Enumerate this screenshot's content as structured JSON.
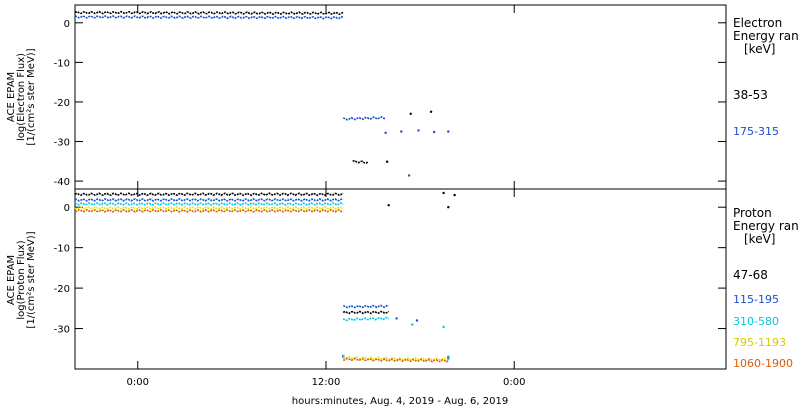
{
  "chart_data": [
    {
      "panel": "electron",
      "type": "scatter",
      "ylabel": [
        "ACE EPAM",
        "log(Electron Flux)",
        "[1/(cm²s ster MeV)]"
      ],
      "ylim": [
        -42,
        4.5
      ],
      "yticks": [
        0,
        -10,
        -20,
        -30,
        -40
      ],
      "legend_title": [
        "Electron",
        "Energy ran",
        "[keV]"
      ],
      "series": [
        {
          "name": "38-53",
          "color": "#000000",
          "x": [
            -4.0,
            13.1,
            13.7,
            14.7,
            15.9,
            17.4,
            18.7
          ],
          "y": [
            2.6,
            2.4,
            -35.0,
            -35.3,
            -35.1,
            -23.0,
            -22.5
          ]
        },
        {
          "name": "175-315",
          "color": "#1a4fc8",
          "x": [
            -4.0,
            13.1,
            13.1,
            15.8,
            15.8,
            16.8,
            17.3,
            17.9,
            18.9,
            19.8
          ],
          "y": [
            1.5,
            1.3,
            -24.3,
            -24.0,
            -27.8,
            -27.5,
            -38.6,
            -27.2,
            -27.6,
            -27.5
          ]
        }
      ]
    },
    {
      "panel": "proton",
      "type": "scatter",
      "ylabel": [
        "ACE EPAM",
        "log(Proton Flux)",
        "[1/(cm²s ster MeV)]"
      ],
      "ylim": [
        -40,
        4.5
      ],
      "yticks": [
        0,
        -10,
        -20,
        -30
      ],
      "legend_title": [
        "Proton",
        "Energy ran",
        "[keV]"
      ],
      "series": [
        {
          "name": "47-68",
          "color": "#000000",
          "x": [
            -4.0,
            13.1,
            13.1,
            16.0,
            16.0,
            19.5,
            19.8,
            20.2,
            13.1,
            19.8
          ],
          "y": [
            3.2,
            3.2,
            -26.0,
            -26.0,
            0.5,
            3.5,
            0.0,
            3.0,
            -36.8,
            -37.0
          ]
        },
        {
          "name": "115-195",
          "color": "#1a4fc8",
          "x": [
            -4.0,
            13.1,
            13.1,
            16.0,
            16.5,
            17.8,
            13.1,
            19.8
          ],
          "y": [
            1.8,
            1.8,
            -24.6,
            -24.5,
            -27.5,
            -28.0,
            -37.0,
            -37.4
          ]
        },
        {
          "name": "310-580",
          "color": "#00c8e0",
          "x": [
            -4.0,
            13.1,
            13.1,
            16.0,
            17.5,
            19.5,
            13.1,
            19.8
          ],
          "y": [
            0.8,
            0.8,
            -27.8,
            -27.5,
            -29.0,
            -29.6,
            -36.8,
            -37.1
          ]
        },
        {
          "name": "795-1193",
          "color": "#e6e600",
          "x": [
            -4.0,
            13.1,
            13.1,
            19.8
          ],
          "y": [
            -0.2,
            -0.2,
            -37.2,
            -37.6
          ]
        },
        {
          "name": "1060-1900",
          "color": "#e05a00",
          "x": [
            -4.0,
            13.1,
            13.1,
            19.8
          ],
          "y": [
            -0.9,
            -0.9,
            -37.6,
            -38.0
          ]
        }
      ]
    }
  ],
  "x_axis": {
    "range_hours": [
      -4.0,
      37.5
    ],
    "ticks": [
      0,
      12,
      24
    ],
    "tick_labels": [
      "0:00",
      "12:00",
      "0:00"
    ],
    "title": "hours:minutes, Aug.  4, 2019 - Aug.  6, 2019"
  }
}
